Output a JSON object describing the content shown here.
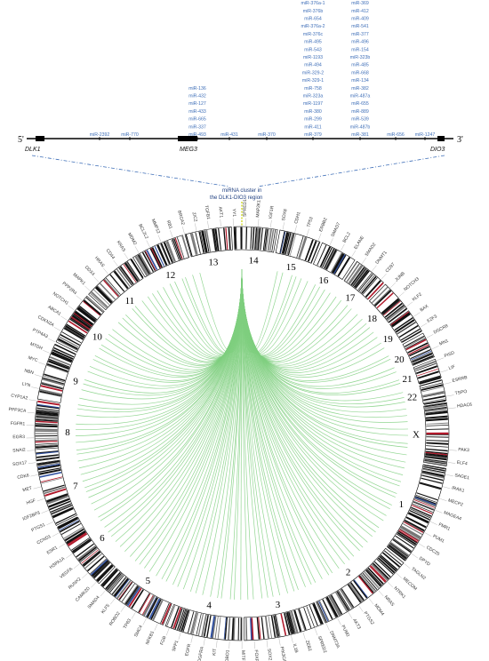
{
  "locus": {
    "left_end": "5'",
    "right_end": "3'",
    "genes": [
      "DLK1",
      "MEG3",
      "DIO3"
    ],
    "cluster_label_line1": "miRNA cluster in",
    "cluster_label_line2": "the DLK1-DIO3 region"
  },
  "mirna_columns": [
    [
      "miR-2392"
    ],
    [
      "miR-770"
    ],
    [
      "miR-136",
      "miR-432",
      "miR-127",
      "miR-433",
      "miR-665",
      "miR-337",
      "miR-493"
    ],
    [
      "miR-431"
    ],
    [
      "miR-370"
    ],
    [
      "miR-1185-2",
      "miR-1185-1",
      "miR-300",
      "miR-376a-1",
      "miR-376b",
      "miR-654",
      "miR-376a-2",
      "miR-376c",
      "miR-495",
      "miR-543",
      "miR-1193",
      "miR-494",
      "miR-329-2",
      "miR-329-1",
      "miR-758",
      "miR-323a",
      "miR-1197",
      "miR-380",
      "miR-299",
      "miR-411",
      "miR-379"
    ],
    [
      "miR-410",
      "miR-369",
      "miR-412",
      "miR-409",
      "miR-541",
      "miR-377",
      "miR-496",
      "miR-154",
      "miR-323b",
      "miR-485",
      "miR-668",
      "miR-134",
      "miR-382",
      "miR-487a",
      "miR-655",
      "miR-889",
      "miR-539",
      "miR-487b",
      "miR-381"
    ],
    [
      "miR-656"
    ],
    [
      "miR-1247"
    ]
  ],
  "chromosomes": [
    "1",
    "2",
    "3",
    "4",
    "5",
    "6",
    "7",
    "8",
    "9",
    "10",
    "11",
    "12",
    "13",
    "14",
    "15",
    "16",
    "17",
    "18",
    "19",
    "20",
    "21",
    "22",
    "X"
  ],
  "target_genes": [
    "PAK3",
    "ELF4",
    "SAGE1",
    "IRAK1",
    "MECP2",
    "MAGEA4",
    "FMR1",
    "PUM1",
    "CDC25",
    "DPYD",
    "TAGLN2",
    "MECOM",
    "NTRK1",
    "NRAS",
    "MDM4",
    "PTGS2",
    "AKT3",
    "PUM2",
    "DNMT3A",
    "SPRED2",
    "ZEB2",
    "IL1B",
    "PIK3CA",
    "SOX2",
    "FOXP1",
    "MITF",
    "ROBO1",
    "KIT",
    "PDGFRA",
    "EGFR",
    "SPP1",
    "FGB",
    "NFKB1",
    "SMC4",
    "TP63",
    "ROBO2",
    "KLF5",
    "SMAD4",
    "CAMK2D",
    "RUNX2",
    "VEGFA",
    "HSPA1A",
    "ESR1",
    "CCND1",
    "PTGS1",
    "IGF2BP3",
    "HGF",
    "MET",
    "CDK6",
    "SOX17",
    "SNAI2",
    "EGR3",
    "FGFR1",
    "PPP3CA",
    "CYP1A2",
    "LYN",
    "NBN",
    "MYC",
    "MTDH",
    "PTP4A3",
    "CDKN2A",
    "ABCA1",
    "NOTCH1",
    "PPP2R4",
    "MAPK1",
    "DDX4",
    "HRAS",
    "CD44",
    "KRAS",
    "MDM2",
    "BCL2L2",
    "MMP12",
    "RB1",
    "BRCA2",
    "ZIC2",
    "TGFB1",
    "AKT1",
    "YY1",
    "SPRED1",
    "MAP2K1",
    "IGF1R",
    "SOX8",
    "CDH1",
    "TP53",
    "ERBB2",
    "SMAD7",
    "BCL2",
    "ELANE",
    "SMAD2",
    "DNMT1",
    "CD97",
    "JUNB",
    "NOTCH3",
    "KLF2",
    "BAX",
    "E2F3",
    "DGCR8",
    "MN1",
    "PISD",
    "LIF",
    "ESRRB",
    "TSPO",
    "HDAC6"
  ]
}
